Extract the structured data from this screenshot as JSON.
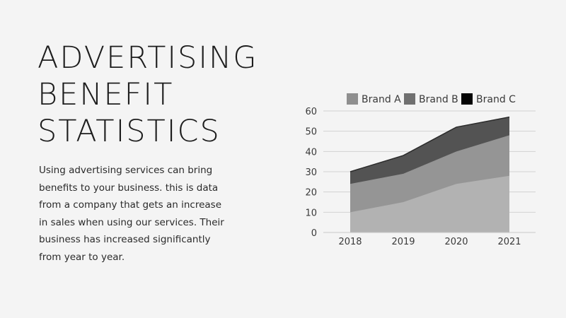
{
  "slide": {
    "title_lines": [
      "ADVERTISING",
      "BENEFIT",
      "STATISTICS"
    ],
    "description_lines": [
      "Using advertising services can bring",
      "benefits to your business. this is data",
      "from a company that gets an increase",
      "in sales when using our services. Their",
      "business has increased significantly",
      "from year to year."
    ]
  },
  "chart_data": {
    "type": "area",
    "stacked": true,
    "title": "",
    "xlabel": "",
    "ylabel": "",
    "categories": [
      "2018",
      "2019",
      "2020",
      "2021"
    ],
    "ylim": [
      0,
      60
    ],
    "yticks": [
      0,
      10,
      20,
      30,
      40,
      50,
      60
    ],
    "grid": true,
    "legend_position": "top",
    "series": [
      {
        "name": "Brand A",
        "values": [
          10,
          15,
          24,
          28
        ],
        "color": "#b2b2b2",
        "legend_color": "#8f8f8f"
      },
      {
        "name": "Brand B",
        "values": [
          14,
          14,
          16,
          20
        ],
        "color": "#959595",
        "legend_color": "#707070"
      },
      {
        "name": "Brand C",
        "values": [
          6,
          9,
          12,
          9
        ],
        "color": "#535353",
        "legend_color": "#050505"
      }
    ]
  }
}
